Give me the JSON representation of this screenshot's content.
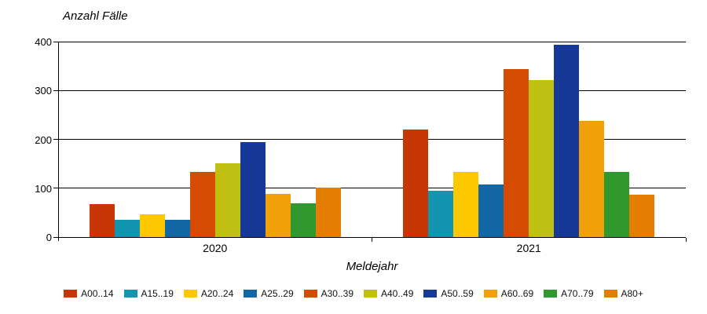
{
  "chart_data": {
    "type": "bar",
    "title": "Anzahl Fälle",
    "xlabel": "Meldejahr",
    "ylabel": "",
    "categories": [
      "2020",
      "2021"
    ],
    "yticks": [
      0,
      100,
      200,
      300,
      400
    ],
    "ylim": [
      0,
      400
    ],
    "grid": "horizontal",
    "legend_position": "bottom",
    "axis_color": "#000000",
    "background_color": "#ffffff",
    "series": [
      {
        "name": "A00..14",
        "color": "#c93605",
        "values": [
          67,
          220
        ]
      },
      {
        "name": "A15..19",
        "color": "#1295ae",
        "values": [
          35,
          94
        ]
      },
      {
        "name": "A20..24",
        "color": "#fdc800",
        "values": [
          46,
          134
        ]
      },
      {
        "name": "A25..29",
        "color": "#1467a5",
        "values": [
          35,
          108
        ]
      },
      {
        "name": "A30..39",
        "color": "#d54b02",
        "values": [
          134,
          343
        ]
      },
      {
        "name": "A40..49",
        "color": "#c0c013",
        "values": [
          151,
          321
        ]
      },
      {
        "name": "A50..59",
        "color": "#163896",
        "values": [
          195,
          394
        ]
      },
      {
        "name": "A60..69",
        "color": "#f2a008",
        "values": [
          88,
          237
        ]
      },
      {
        "name": "A70..79",
        "color": "#2f9930",
        "values": [
          69,
          134
        ]
      },
      {
        "name": "A80+",
        "color": "#e37e02",
        "values": [
          101,
          87
        ]
      }
    ]
  }
}
